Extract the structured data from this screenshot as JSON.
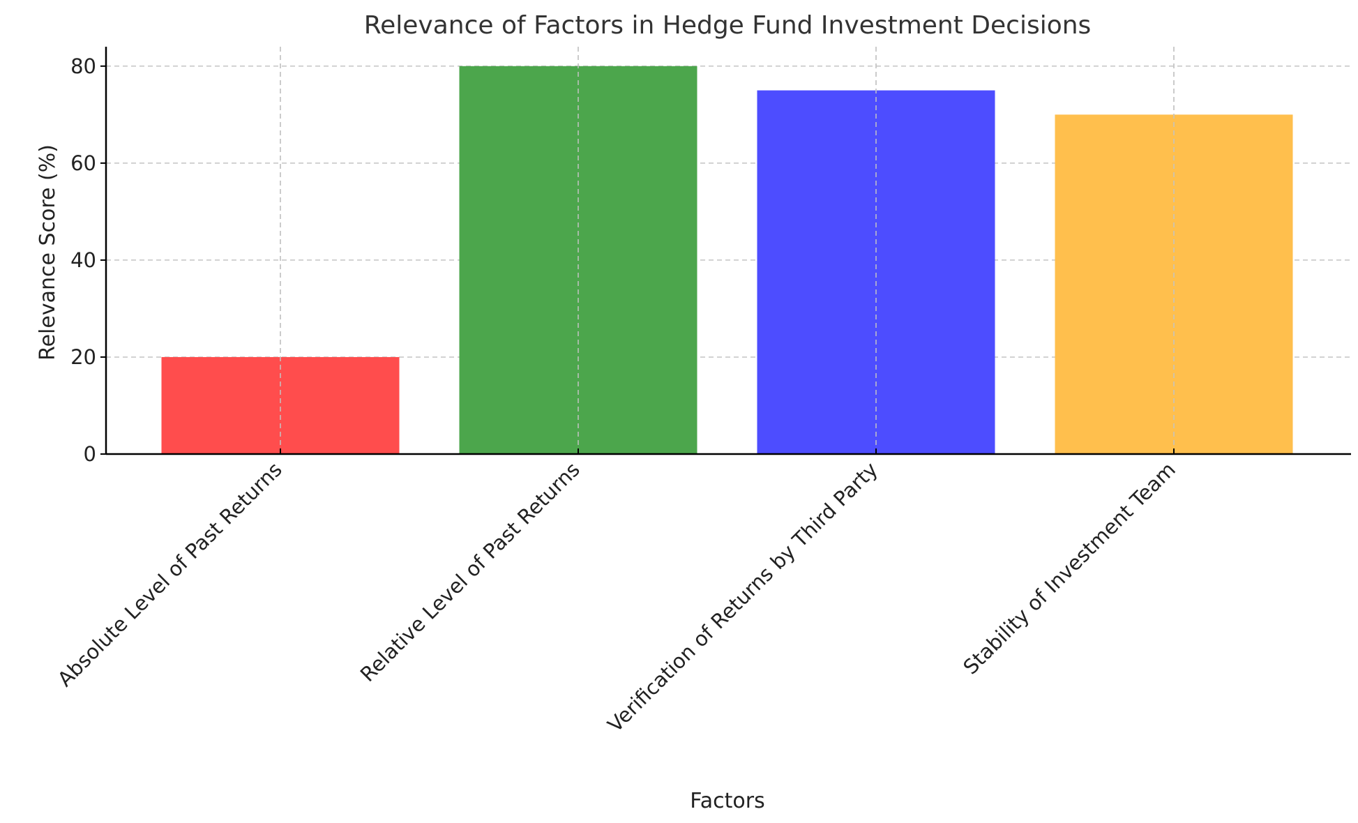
{
  "chart_data": {
    "type": "bar",
    "title": "Relevance of Factors in Hedge Fund Investment Decisions",
    "xlabel": "Factors",
    "ylabel": "Relevance Score (%)",
    "categories": [
      "Absolute Level of Past Returns",
      "Relative Level of Past Returns",
      "Verification of Returns by Third Party",
      "Stability of Investment Team"
    ],
    "values": [
      20,
      80,
      75,
      70
    ],
    "colors": [
      "#ff4d4d",
      "#4ca64c",
      "#4d4dff",
      "#ffbf4d"
    ],
    "ylim": [
      0,
      84
    ],
    "yticks": [
      0,
      20,
      40,
      60,
      80
    ],
    "grid": true
  }
}
